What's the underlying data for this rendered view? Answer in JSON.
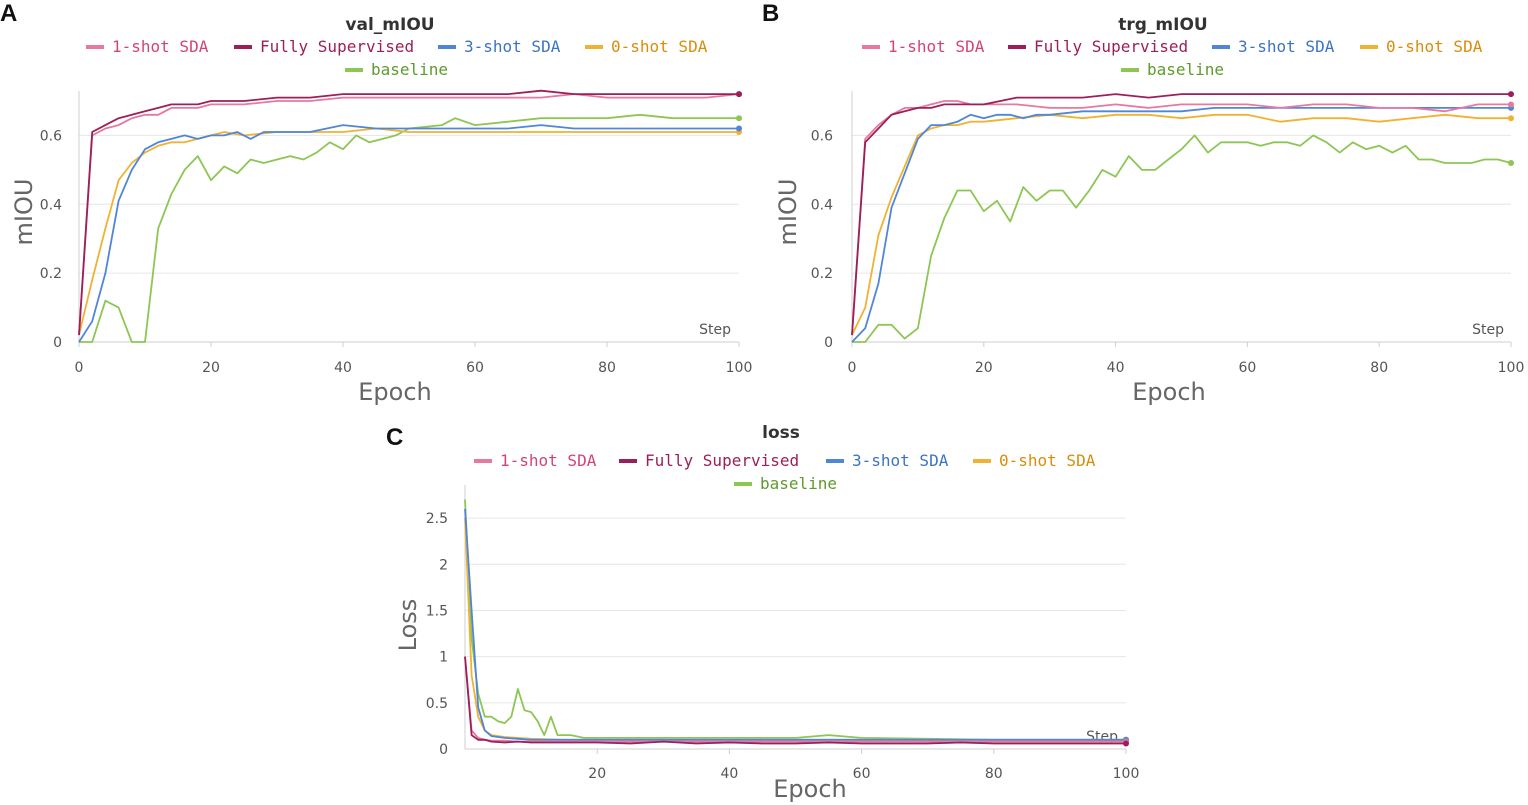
{
  "chart_data": [
    {
      "panel": "A",
      "type": "line",
      "title": "val_mIOU",
      "xlabel": "Epoch",
      "ylabel": "mIOU",
      "step_label": "Step",
      "xlim": [
        0,
        100
      ],
      "ylim": [
        0,
        0.7
      ],
      "xticks": [
        0,
        20,
        40,
        60,
        80,
        100
      ],
      "yticks": [
        0,
        0.2,
        0.4,
        0.6
      ],
      "ytick_labels": [
        "0",
        "0.2",
        "0.4",
        "0.6"
      ],
      "legend": [
        "1-shot SDA",
        "Fully Supervised",
        "3-shot SDA",
        "0-shot SDA",
        "baseline"
      ],
      "series": [
        {
          "name": "1-shot SDA",
          "color": "#e8789f",
          "text_color": "#d2437a",
          "x": [
            0,
            2,
            4,
            6,
            8,
            10,
            12,
            14,
            16,
            18,
            20,
            25,
            30,
            35,
            40,
            45,
            50,
            55,
            60,
            65,
            70,
            75,
            80,
            85,
            90,
            95,
            100
          ],
          "y": [
            0.02,
            0.6,
            0.62,
            0.63,
            0.65,
            0.66,
            0.66,
            0.68,
            0.68,
            0.68,
            0.69,
            0.69,
            0.7,
            0.7,
            0.71,
            0.71,
            0.71,
            0.71,
            0.71,
            0.71,
            0.71,
            0.72,
            0.71,
            0.71,
            0.71,
            0.71,
            0.72
          ]
        },
        {
          "name": "Fully Supervised",
          "color": "#9c1f59",
          "text_color": "#9c1f59",
          "x": [
            0,
            2,
            4,
            6,
            8,
            10,
            12,
            14,
            16,
            18,
            20,
            25,
            30,
            35,
            40,
            45,
            50,
            55,
            60,
            65,
            70,
            75,
            80,
            85,
            90,
            95,
            100
          ],
          "y": [
            0.02,
            0.61,
            0.63,
            0.65,
            0.66,
            0.67,
            0.68,
            0.69,
            0.69,
            0.69,
            0.7,
            0.7,
            0.71,
            0.71,
            0.72,
            0.72,
            0.72,
            0.72,
            0.72,
            0.72,
            0.73,
            0.72,
            0.72,
            0.72,
            0.72,
            0.72,
            0.72
          ]
        },
        {
          "name": "3-shot SDA",
          "color": "#4f86d8",
          "text_color": "#3d73c4",
          "x": [
            0,
            2,
            4,
            6,
            8,
            10,
            12,
            14,
            16,
            18,
            20,
            22,
            24,
            26,
            28,
            30,
            35,
            40,
            45,
            50,
            55,
            60,
            65,
            70,
            75,
            80,
            85,
            90,
            95,
            100
          ],
          "y": [
            0.0,
            0.06,
            0.2,
            0.41,
            0.5,
            0.56,
            0.58,
            0.59,
            0.6,
            0.59,
            0.6,
            0.6,
            0.61,
            0.59,
            0.61,
            0.61,
            0.61,
            0.63,
            0.62,
            0.62,
            0.62,
            0.62,
            0.62,
            0.63,
            0.62,
            0.62,
            0.62,
            0.62,
            0.62,
            0.62
          ]
        },
        {
          "name": "0-shot SDA",
          "color": "#f0b233",
          "text_color": "#d98d0a",
          "x": [
            0,
            2,
            4,
            6,
            8,
            10,
            12,
            14,
            16,
            18,
            20,
            22,
            25,
            30,
            35,
            40,
            45,
            50,
            55,
            60,
            65,
            70,
            75,
            80,
            85,
            90,
            95,
            100
          ],
          "y": [
            0.02,
            0.18,
            0.33,
            0.47,
            0.52,
            0.55,
            0.57,
            0.58,
            0.58,
            0.59,
            0.6,
            0.61,
            0.6,
            0.61,
            0.61,
            0.61,
            0.62,
            0.61,
            0.61,
            0.61,
            0.61,
            0.61,
            0.61,
            0.61,
            0.61,
            0.61,
            0.61,
            0.61
          ]
        },
        {
          "name": "baseline",
          "color": "#8dc653",
          "text_color": "#5f9a2c",
          "x": [
            0,
            2,
            4,
            6,
            8,
            10,
            12,
            14,
            16,
            18,
            20,
            22,
            24,
            26,
            28,
            30,
            32,
            34,
            36,
            38,
            40,
            42,
            44,
            46,
            48,
            50,
            55,
            57,
            60,
            65,
            70,
            75,
            80,
            85,
            90,
            95,
            100
          ],
          "y": [
            0.0,
            0.0,
            0.12,
            0.1,
            0.0,
            0.0,
            0.33,
            0.43,
            0.5,
            0.54,
            0.47,
            0.51,
            0.49,
            0.53,
            0.52,
            0.53,
            0.54,
            0.53,
            0.55,
            0.58,
            0.56,
            0.6,
            0.58,
            0.59,
            0.6,
            0.62,
            0.63,
            0.65,
            0.63,
            0.64,
            0.65,
            0.65,
            0.65,
            0.66,
            0.65,
            0.65,
            0.65
          ]
        }
      ]
    },
    {
      "panel": "B",
      "type": "line",
      "title": "trg_mIOU",
      "xlabel": "Epoch",
      "ylabel": "mIOU",
      "step_label": "Step",
      "xlim": [
        0,
        100
      ],
      "ylim": [
        0,
        0.7
      ],
      "xticks": [
        0,
        20,
        40,
        60,
        80,
        100
      ],
      "yticks": [
        0,
        0.2,
        0.4,
        0.6
      ],
      "ytick_labels": [
        "0",
        "0.2",
        "0.4",
        "0.6"
      ],
      "legend": [
        "1-shot SDA",
        "Fully Supervised",
        "3-shot SDA",
        "0-shot SDA",
        "baseline"
      ],
      "series": [
        {
          "name": "1-shot SDA",
          "color": "#e8789f",
          "text_color": "#d2437a",
          "x": [
            0,
            2,
            4,
            6,
            8,
            10,
            12,
            14,
            16,
            18,
            20,
            25,
            30,
            35,
            40,
            45,
            50,
            55,
            60,
            65,
            70,
            75,
            80,
            85,
            90,
            95,
            100
          ],
          "y": [
            0.02,
            0.59,
            0.63,
            0.66,
            0.68,
            0.68,
            0.69,
            0.7,
            0.7,
            0.69,
            0.69,
            0.69,
            0.68,
            0.68,
            0.69,
            0.68,
            0.69,
            0.69,
            0.69,
            0.68,
            0.69,
            0.69,
            0.68,
            0.68,
            0.67,
            0.69,
            0.69
          ]
        },
        {
          "name": "Fully Supervised",
          "color": "#9c1f59",
          "text_color": "#9c1f59",
          "x": [
            0,
            2,
            4,
            6,
            8,
            10,
            12,
            14,
            16,
            18,
            20,
            25,
            30,
            35,
            40,
            45,
            50,
            55,
            60,
            65,
            70,
            75,
            80,
            85,
            90,
            95,
            100
          ],
          "y": [
            0.02,
            0.58,
            0.62,
            0.66,
            0.67,
            0.68,
            0.68,
            0.69,
            0.69,
            0.69,
            0.69,
            0.71,
            0.71,
            0.71,
            0.72,
            0.71,
            0.72,
            0.72,
            0.72,
            0.72,
            0.72,
            0.72,
            0.72,
            0.72,
            0.72,
            0.72,
            0.72
          ]
        },
        {
          "name": "3-shot SDA",
          "color": "#4f86d8",
          "text_color": "#3d73c4",
          "x": [
            0,
            2,
            4,
            6,
            8,
            10,
            12,
            14,
            16,
            18,
            20,
            22,
            24,
            26,
            28,
            30,
            35,
            40,
            45,
            50,
            55,
            60,
            65,
            70,
            75,
            80,
            85,
            90,
            95,
            100
          ],
          "y": [
            0.0,
            0.04,
            0.17,
            0.39,
            0.49,
            0.59,
            0.63,
            0.63,
            0.64,
            0.66,
            0.65,
            0.66,
            0.66,
            0.65,
            0.66,
            0.66,
            0.67,
            0.67,
            0.67,
            0.67,
            0.68,
            0.68,
            0.68,
            0.68,
            0.68,
            0.68,
            0.68,
            0.68,
            0.68,
            0.68
          ]
        },
        {
          "name": "0-shot SDA",
          "color": "#f0b233",
          "text_color": "#d98d0a",
          "x": [
            0,
            2,
            4,
            6,
            8,
            10,
            12,
            14,
            16,
            18,
            20,
            25,
            30,
            35,
            40,
            45,
            50,
            55,
            60,
            65,
            70,
            75,
            80,
            85,
            90,
            95,
            100
          ],
          "y": [
            0.02,
            0.1,
            0.31,
            0.42,
            0.51,
            0.6,
            0.62,
            0.63,
            0.63,
            0.64,
            0.64,
            0.65,
            0.66,
            0.65,
            0.66,
            0.66,
            0.65,
            0.66,
            0.66,
            0.64,
            0.65,
            0.65,
            0.64,
            0.65,
            0.66,
            0.65,
            0.65
          ]
        },
        {
          "name": "baseline",
          "color": "#8dc653",
          "text_color": "#5f9a2c",
          "x": [
            0,
            2,
            4,
            6,
            8,
            10,
            12,
            14,
            16,
            18,
            20,
            22,
            24,
            26,
            28,
            30,
            32,
            34,
            36,
            38,
            40,
            42,
            44,
            46,
            48,
            50,
            52,
            54,
            56,
            60,
            62,
            64,
            66,
            68,
            70,
            72,
            74,
            76,
            78,
            80,
            82,
            84,
            86,
            88,
            90,
            92,
            94,
            96,
            98,
            100
          ],
          "y": [
            0.0,
            0.0,
            0.05,
            0.05,
            0.01,
            0.04,
            0.25,
            0.36,
            0.44,
            0.44,
            0.38,
            0.41,
            0.35,
            0.45,
            0.41,
            0.44,
            0.44,
            0.39,
            0.44,
            0.5,
            0.48,
            0.54,
            0.5,
            0.5,
            0.53,
            0.56,
            0.6,
            0.55,
            0.58,
            0.58,
            0.57,
            0.58,
            0.58,
            0.57,
            0.6,
            0.58,
            0.55,
            0.58,
            0.56,
            0.57,
            0.55,
            0.57,
            0.53,
            0.53,
            0.52,
            0.52,
            0.52,
            0.53,
            0.53,
            0.52
          ]
        }
      ]
    },
    {
      "panel": "C",
      "type": "line",
      "title": "loss",
      "xlabel": "Epoch",
      "ylabel": "Loss",
      "step_label": "Step",
      "xlim": [
        0,
        100
      ],
      "ylim": [
        0,
        2.75
      ],
      "xticks": [
        20,
        40,
        60,
        80,
        100
      ],
      "yticks": [
        0,
        0.5,
        1,
        1.5,
        2,
        2.5
      ],
      "ytick_labels": [
        "0",
        "0.5",
        "1",
        "1.5",
        "2",
        "2.5"
      ],
      "legend": [
        "1-shot SDA",
        "Fully Supervised",
        "3-shot SDA",
        "0-shot SDA",
        "baseline"
      ],
      "series": [
        {
          "name": "1-shot SDA",
          "color": "#e8789f",
          "text_color": "#d2437a",
          "x": [
            0,
            1,
            2,
            3,
            4,
            6,
            8,
            10,
            15,
            20,
            30,
            40,
            50,
            60,
            70,
            80,
            90,
            100
          ],
          "y": [
            1.0,
            0.2,
            0.12,
            0.1,
            0.09,
            0.09,
            0.08,
            0.08,
            0.08,
            0.08,
            0.08,
            0.08,
            0.08,
            0.08,
            0.08,
            0.08,
            0.08,
            0.08
          ]
        },
        {
          "name": "Fully Supervised",
          "color": "#9c1f59",
          "text_color": "#9c1f59",
          "x": [
            0,
            1,
            2,
            3,
            4,
            6,
            8,
            10,
            15,
            20,
            25,
            30,
            35,
            40,
            45,
            50,
            55,
            60,
            65,
            70,
            75,
            80,
            85,
            90,
            95,
            100
          ],
          "y": [
            1.0,
            0.15,
            0.1,
            0.1,
            0.08,
            0.07,
            0.08,
            0.07,
            0.07,
            0.07,
            0.06,
            0.08,
            0.06,
            0.07,
            0.06,
            0.06,
            0.07,
            0.06,
            0.06,
            0.06,
            0.07,
            0.06,
            0.06,
            0.06,
            0.06,
            0.06
          ]
        },
        {
          "name": "3-shot SDA",
          "color": "#4f86d8",
          "text_color": "#3d73c4",
          "x": [
            0,
            1,
            2,
            3,
            4,
            6,
            8,
            10,
            15,
            20,
            30,
            40,
            50,
            60,
            70,
            80,
            90,
            100
          ],
          "y": [
            2.6,
            1.5,
            0.45,
            0.2,
            0.14,
            0.12,
            0.11,
            0.1,
            0.1,
            0.1,
            0.1,
            0.1,
            0.1,
            0.1,
            0.1,
            0.1,
            0.1,
            0.1
          ]
        },
        {
          "name": "0-shot SDA",
          "color": "#f0b233",
          "text_color": "#d98d0a",
          "x": [
            0,
            1,
            2,
            3,
            4,
            6,
            8,
            10,
            15,
            20,
            30,
            40,
            50,
            60,
            70,
            80,
            90,
            100
          ],
          "y": [
            2.5,
            0.8,
            0.35,
            0.2,
            0.15,
            0.13,
            0.12,
            0.11,
            0.1,
            0.1,
            0.1,
            0.1,
            0.1,
            0.1,
            0.1,
            0.1,
            0.1,
            0.1
          ]
        },
        {
          "name": "baseline",
          "color": "#8dc653",
          "text_color": "#5f9a2c",
          "x": [
            0,
            1,
            2,
            3,
            4,
            5,
            6,
            7,
            8,
            9,
            10,
            11,
            12,
            13,
            14,
            16,
            18,
            20,
            25,
            30,
            40,
            50,
            55,
            60,
            70,
            80,
            90,
            100
          ],
          "y": [
            2.7,
            1.2,
            0.6,
            0.35,
            0.35,
            0.3,
            0.28,
            0.35,
            0.65,
            0.42,
            0.4,
            0.3,
            0.15,
            0.35,
            0.15,
            0.15,
            0.12,
            0.12,
            0.12,
            0.12,
            0.12,
            0.12,
            0.15,
            0.12,
            0.11,
            0.1,
            0.1,
            0.1
          ]
        }
      ]
    }
  ]
}
